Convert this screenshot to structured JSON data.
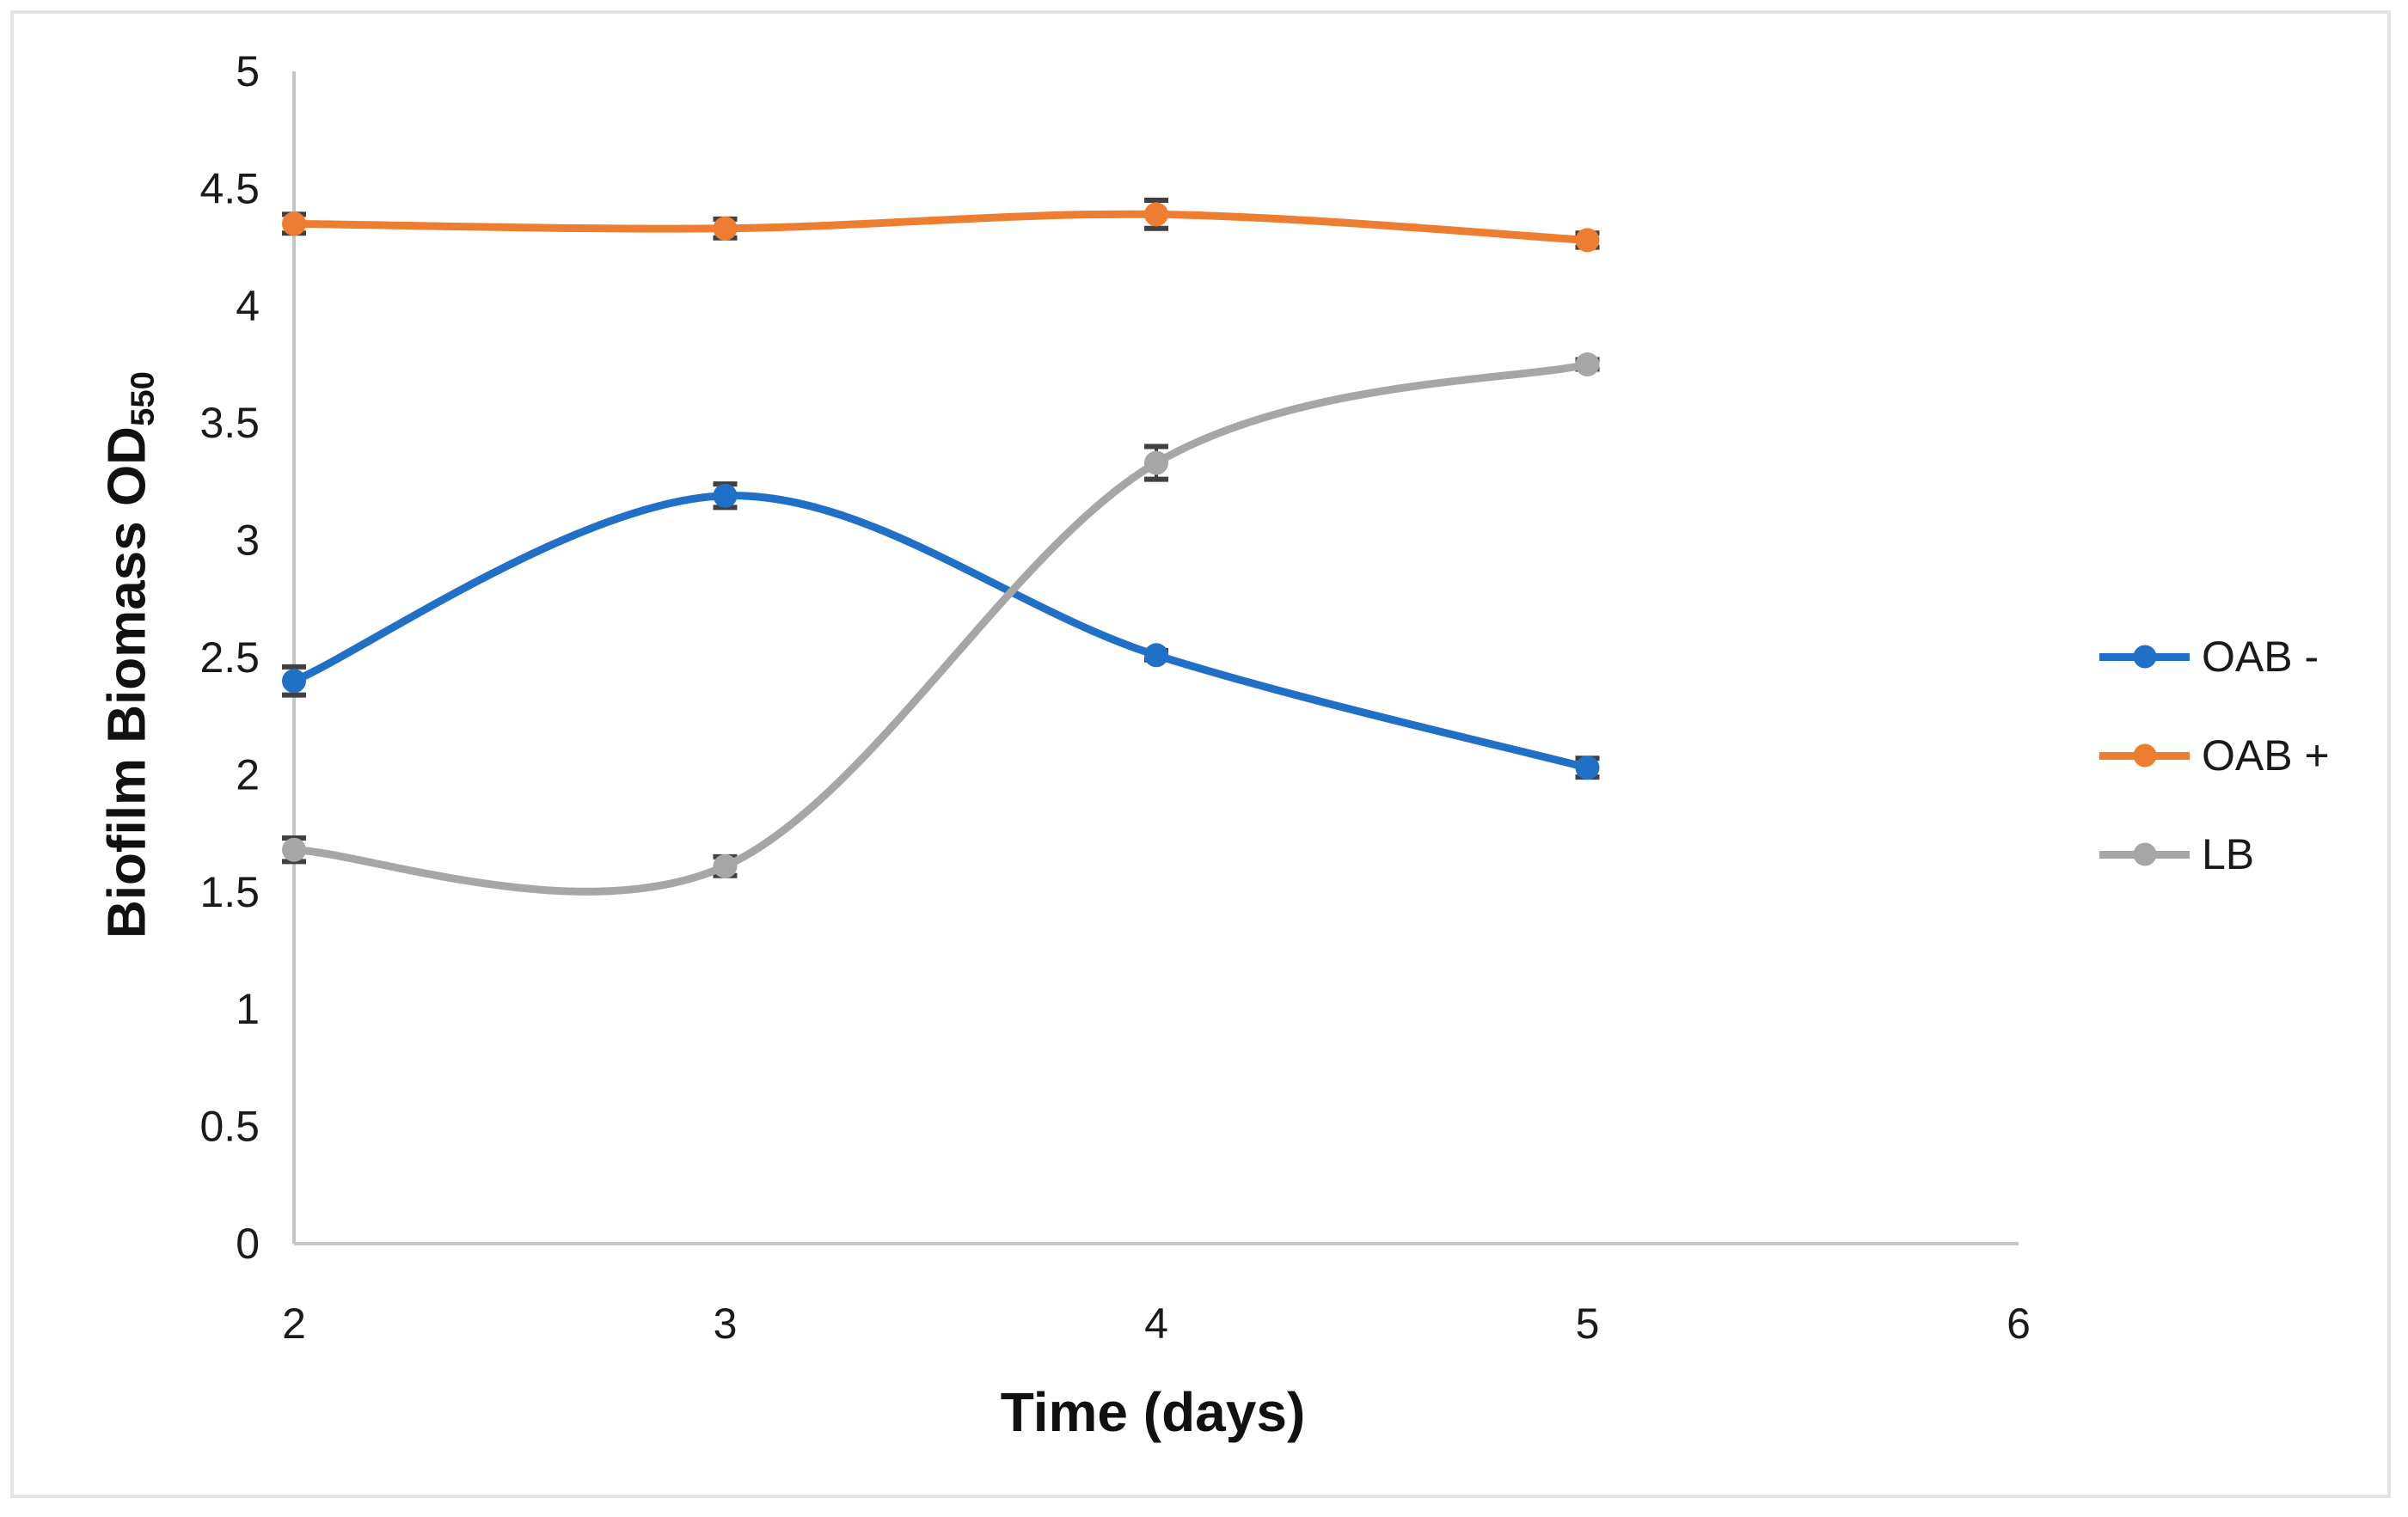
{
  "figure": {
    "background": "#ffffff",
    "border_color": "#e3e3e3"
  },
  "chart_data": {
    "type": "line",
    "title": "",
    "xlabel": "Time (days)",
    "ylabel": "Biofilm Biomass OD",
    "ylabel_subscript": "550",
    "x": [
      2,
      3,
      4,
      5
    ],
    "xlim": [
      2,
      6
    ],
    "ylim": [
      0,
      5
    ],
    "x_ticks": [
      2,
      3,
      4,
      5,
      6
    ],
    "x_tick_labels": [
      "2",
      "3",
      "4",
      "5",
      "6"
    ],
    "y_ticks": [
      0,
      0.5,
      1,
      1.5,
      2,
      2.5,
      3,
      3.5,
      4,
      4.5,
      5
    ],
    "y_tick_labels": [
      "0",
      "0.5",
      "1",
      "1.5",
      "2",
      "2.5",
      "3",
      "3.5",
      "4",
      "4.5",
      "5"
    ],
    "grid": false,
    "smooth_lines": true,
    "legend_position": "right",
    "axis_line_color": "#c6c6c6",
    "tick_label_color": "#1a1a1a",
    "error_bar_color": "#404040",
    "series": [
      {
        "name": "OAB -",
        "color": "#2170c7",
        "values": [
          2.4,
          3.19,
          2.51,
          2.03
        ],
        "errors": [
          0.06,
          0.05,
          0.02,
          0.04
        ]
      },
      {
        "name": "OAB +",
        "color": "#ed7d31",
        "values": [
          4.35,
          4.33,
          4.39,
          4.28
        ],
        "errors": [
          0.04,
          0.04,
          0.06,
          0.03
        ]
      },
      {
        "name": "LB",
        "color": "#a6a6a6",
        "values": [
          1.68,
          1.61,
          3.33,
          3.75
        ],
        "errors": [
          0.05,
          0.04,
          0.07,
          0.02
        ]
      }
    ]
  }
}
